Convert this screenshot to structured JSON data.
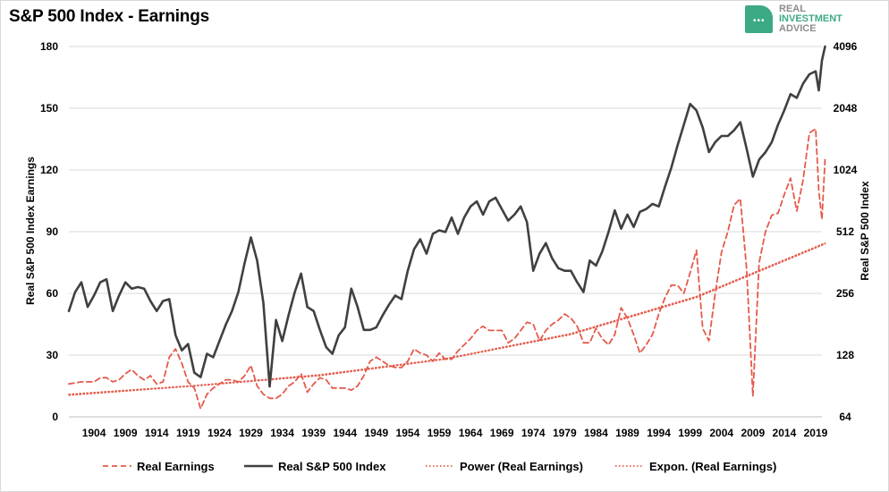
{
  "chart_data": {
    "type": "line",
    "title": "S&P 500 Index - Earnings",
    "ylabel_left": "Real S&P 500 Index Earnings",
    "ylabel_right": "Real S&P 500 Index",
    "yleft_ticks": [
      0,
      30,
      60,
      90,
      120,
      150,
      180
    ],
    "yleft_lim": [
      0,
      180
    ],
    "yright_ticks": [
      64,
      128,
      256,
      512,
      1024,
      2048,
      4096
    ],
    "yright_lim": [
      64,
      4096
    ],
    "yright_scale": "log2",
    "x_ticks": [
      1904,
      1909,
      1914,
      1919,
      1924,
      1929,
      1934,
      1939,
      1944,
      1949,
      1954,
      1959,
      1964,
      1969,
      1974,
      1979,
      1984,
      1989,
      1994,
      1999,
      2004,
      2009,
      2014,
      2019
    ],
    "x_range": [
      1900,
      2020
    ],
    "grid": "horizontal",
    "legend_position": "bottom",
    "series": [
      {
        "name": "Real Earnings",
        "style": "dashed",
        "color": "#e55a4b",
        "axis": "left",
        "points": [
          [
            1900,
            16
          ],
          [
            1902,
            17
          ],
          [
            1904,
            17
          ],
          [
            1905,
            19
          ],
          [
            1906,
            19
          ],
          [
            1907,
            17
          ],
          [
            1908,
            18
          ],
          [
            1909,
            21
          ],
          [
            1910,
            23
          ],
          [
            1911,
            20
          ],
          [
            1912,
            18
          ],
          [
            1913,
            20
          ],
          [
            1914,
            16
          ],
          [
            1915,
            17
          ],
          [
            1916,
            29
          ],
          [
            1917,
            33
          ],
          [
            1918,
            26
          ],
          [
            1919,
            17
          ],
          [
            1920,
            14
          ],
          [
            1921,
            4
          ],
          [
            1922,
            11
          ],
          [
            1923,
            14
          ],
          [
            1924,
            16
          ],
          [
            1925,
            18
          ],
          [
            1926,
            18
          ],
          [
            1927,
            17
          ],
          [
            1928,
            20
          ],
          [
            1929,
            25
          ],
          [
            1930,
            15
          ],
          [
            1931,
            11
          ],
          [
            1932,
            9
          ],
          [
            1933,
            9
          ],
          [
            1934,
            11
          ],
          [
            1935,
            15
          ],
          [
            1936,
            17
          ],
          [
            1937,
            21
          ],
          [
            1938,
            12
          ],
          [
            1939,
            16
          ],
          [
            1940,
            19
          ],
          [
            1941,
            18
          ],
          [
            1942,
            14
          ],
          [
            1943,
            14
          ],
          [
            1944,
            14
          ],
          [
            1945,
            13
          ],
          [
            1946,
            15
          ],
          [
            1947,
            20
          ],
          [
            1948,
            27
          ],
          [
            1949,
            29
          ],
          [
            1950,
            27
          ],
          [
            1951,
            25
          ],
          [
            1952,
            24
          ],
          [
            1953,
            24
          ],
          [
            1954,
            27
          ],
          [
            1955,
            33
          ],
          [
            1956,
            31
          ],
          [
            1957,
            30
          ],
          [
            1958,
            27
          ],
          [
            1959,
            31
          ],
          [
            1960,
            28
          ],
          [
            1961,
            28
          ],
          [
            1962,
            32
          ],
          [
            1963,
            35
          ],
          [
            1964,
            38
          ],
          [
            1965,
            42
          ],
          [
            1966,
            44
          ],
          [
            1967,
            42
          ],
          [
            1968,
            42
          ],
          [
            1969,
            42
          ],
          [
            1970,
            36
          ],
          [
            1971,
            38
          ],
          [
            1972,
            42
          ],
          [
            1973,
            46
          ],
          [
            1974,
            45
          ],
          [
            1975,
            37
          ],
          [
            1976,
            42
          ],
          [
            1977,
            45
          ],
          [
            1978,
            47
          ],
          [
            1979,
            50
          ],
          [
            1980,
            48
          ],
          [
            1981,
            44
          ],
          [
            1982,
            36
          ],
          [
            1983,
            36
          ],
          [
            1984,
            43
          ],
          [
            1985,
            38
          ],
          [
            1986,
            35
          ],
          [
            1987,
            40
          ],
          [
            1988,
            53
          ],
          [
            1989,
            48
          ],
          [
            1990,
            40
          ],
          [
            1991,
            31
          ],
          [
            1992,
            35
          ],
          [
            1993,
            40
          ],
          [
            1994,
            50
          ],
          [
            1995,
            58
          ],
          [
            1996,
            64
          ],
          [
            1997,
            64
          ],
          [
            1998,
            60
          ],
          [
            1999,
            70
          ],
          [
            2000,
            81
          ],
          [
            2001,
            43
          ],
          [
            2002,
            37
          ],
          [
            2003,
            60
          ],
          [
            2004,
            80
          ],
          [
            2005,
            90
          ],
          [
            2006,
            103
          ],
          [
            2007,
            106
          ],
          [
            2008,
            72
          ],
          [
            2009,
            10
          ],
          [
            2010,
            75
          ],
          [
            2011,
            90
          ],
          [
            2012,
            98
          ],
          [
            2013,
            99
          ],
          [
            2014,
            108
          ],
          [
            2015,
            116
          ],
          [
            2016,
            100
          ],
          [
            2017,
            115
          ],
          [
            2018,
            138
          ],
          [
            2019,
            140
          ],
          [
            2019.5,
            110
          ],
          [
            2020,
            96
          ],
          [
            2020.5,
            125
          ]
        ]
      },
      {
        "name": "Real S&P 500 Index",
        "style": "solid",
        "color": "#404040",
        "axis": "right",
        "points": [
          [
            1900,
            210
          ],
          [
            1901,
            260
          ],
          [
            1902,
            290
          ],
          [
            1903,
            220
          ],
          [
            1904,
            250
          ],
          [
            1905,
            290
          ],
          [
            1906,
            300
          ],
          [
            1907,
            210
          ],
          [
            1908,
            250
          ],
          [
            1909,
            290
          ],
          [
            1910,
            270
          ],
          [
            1911,
            275
          ],
          [
            1912,
            270
          ],
          [
            1913,
            235
          ],
          [
            1914,
            210
          ],
          [
            1915,
            235
          ],
          [
            1916,
            240
          ],
          [
            1917,
            160
          ],
          [
            1918,
            135
          ],
          [
            1919,
            145
          ],
          [
            1920,
            105
          ],
          [
            1921,
            100
          ],
          [
            1922,
            130
          ],
          [
            1923,
            125
          ],
          [
            1924,
            150
          ],
          [
            1925,
            180
          ],
          [
            1926,
            210
          ],
          [
            1927,
            260
          ],
          [
            1928,
            360
          ],
          [
            1929,
            480
          ],
          [
            1930,
            370
          ],
          [
            1931,
            230
          ],
          [
            1932,
            90
          ],
          [
            1933,
            190
          ],
          [
            1934,
            150
          ],
          [
            1935,
            200
          ],
          [
            1936,
            260
          ],
          [
            1937,
            320
          ],
          [
            1938,
            220
          ],
          [
            1939,
            210
          ],
          [
            1940,
            170
          ],
          [
            1941,
            140
          ],
          [
            1942,
            130
          ],
          [
            1943,
            160
          ],
          [
            1944,
            175
          ],
          [
            1945,
            270
          ],
          [
            1946,
            220
          ],
          [
            1947,
            170
          ],
          [
            1948,
            170
          ],
          [
            1949,
            175
          ],
          [
            1950,
            200
          ],
          [
            1951,
            225
          ],
          [
            1952,
            250
          ],
          [
            1953,
            240
          ],
          [
            1954,
            330
          ],
          [
            1955,
            420
          ],
          [
            1956,
            470
          ],
          [
            1957,
            400
          ],
          [
            1958,
            500
          ],
          [
            1959,
            520
          ],
          [
            1960,
            510
          ],
          [
            1961,
            600
          ],
          [
            1962,
            500
          ],
          [
            1963,
            600
          ],
          [
            1964,
            680
          ],
          [
            1965,
            720
          ],
          [
            1966,
            620
          ],
          [
            1967,
            720
          ],
          [
            1968,
            750
          ],
          [
            1969,
            660
          ],
          [
            1970,
            580
          ],
          [
            1971,
            620
          ],
          [
            1972,
            680
          ],
          [
            1973,
            570
          ],
          [
            1974,
            330
          ],
          [
            1975,
            400
          ],
          [
            1976,
            450
          ],
          [
            1977,
            380
          ],
          [
            1978,
            340
          ],
          [
            1979,
            330
          ],
          [
            1980,
            330
          ],
          [
            1981,
            290
          ],
          [
            1982,
            260
          ],
          [
            1983,
            370
          ],
          [
            1984,
            350
          ],
          [
            1985,
            410
          ],
          [
            1986,
            510
          ],
          [
            1987,
            650
          ],
          [
            1988,
            530
          ],
          [
            1989,
            620
          ],
          [
            1990,
            540
          ],
          [
            1991,
            640
          ],
          [
            1992,
            660
          ],
          [
            1993,
            700
          ],
          [
            1994,
            680
          ],
          [
            1995,
            850
          ],
          [
            1996,
            1050
          ],
          [
            1997,
            1350
          ],
          [
            1998,
            1700
          ],
          [
            1999,
            2150
          ],
          [
            2000,
            2000
          ],
          [
            2001,
            1650
          ],
          [
            2002,
            1250
          ],
          [
            2003,
            1400
          ],
          [
            2004,
            1500
          ],
          [
            2005,
            1500
          ],
          [
            2006,
            1600
          ],
          [
            2007,
            1750
          ],
          [
            2008,
            1300
          ],
          [
            2009,
            950
          ],
          [
            2010,
            1150
          ],
          [
            2011,
            1250
          ],
          [
            2012,
            1400
          ],
          [
            2013,
            1700
          ],
          [
            2014,
            2000
          ],
          [
            2015,
            2400
          ],
          [
            2016,
            2300
          ],
          [
            2017,
            2700
          ],
          [
            2018,
            3000
          ],
          [
            2019,
            3100
          ],
          [
            2019.5,
            2500
          ],
          [
            2020,
            3500
          ],
          [
            2020.5,
            4096
          ]
        ]
      },
      {
        "name": "Power (Real Earnings)",
        "style": "dotted",
        "color": "#e55a4b",
        "axis": "left",
        "points": [
          [
            1900,
            10.5
          ],
          [
            1920,
            15
          ],
          [
            1940,
            20
          ],
          [
            1960,
            28
          ],
          [
            1980,
            40
          ],
          [
            2000,
            58
          ],
          [
            2020.5,
            84
          ]
        ]
      },
      {
        "name": "Expon. (Real Earnings)",
        "style": "dotted",
        "color": "#e55a4b",
        "axis": "left",
        "points": [
          [
            1900,
            11
          ],
          [
            1920,
            15.2
          ],
          [
            1940,
            20.5
          ],
          [
            1960,
            28.3
          ],
          [
            1980,
            40.5
          ],
          [
            2000,
            58.5
          ],
          [
            2020.5,
            84.5
          ]
        ]
      }
    ]
  },
  "logo": {
    "line1": "REAL",
    "line2": "INVESTMENT",
    "line3": "ADVICE",
    "dots": "•••",
    "color": "#3daa86"
  }
}
